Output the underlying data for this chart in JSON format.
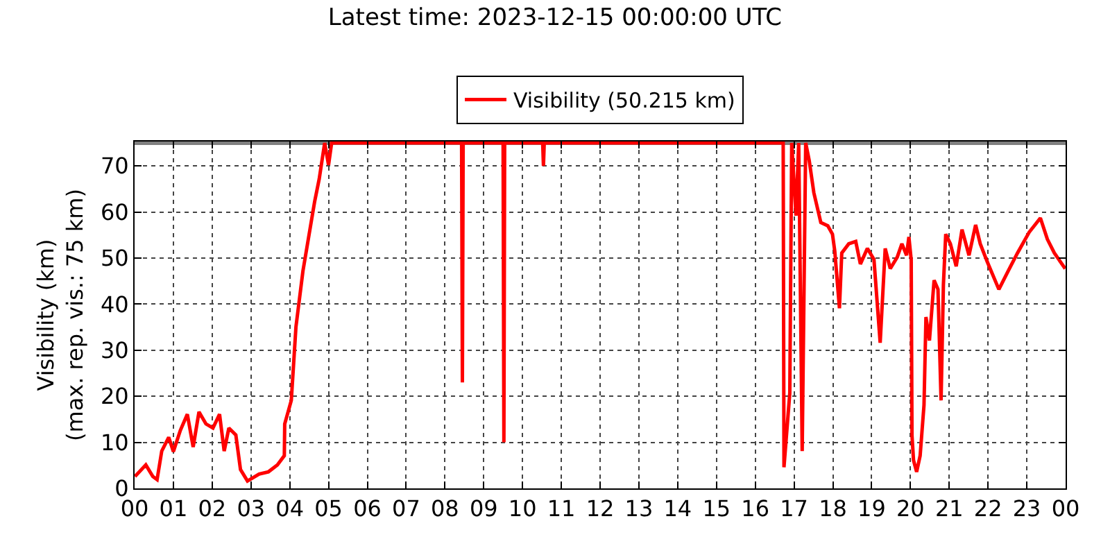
{
  "chart_data": {
    "type": "line",
    "title": "Latest time: 2023-12-15 00:00:00 UTC",
    "ylabel": "Visibility (km)\n(max. rep. vis.: 75 km)",
    "series": [
      {
        "name": "Visibility (50.215 km)",
        "color": "#ff0000",
        "x": [
          0.01,
          0.29,
          0.47,
          0.58,
          0.7,
          0.88,
          1.0,
          1.18,
          1.36,
          1.51,
          1.66,
          1.84,
          2.02,
          2.19,
          2.31,
          2.43,
          2.61,
          2.73,
          2.91,
          3.21,
          3.45,
          3.68,
          3.86,
          3.87,
          4.04,
          4.16,
          4.34,
          4.52,
          4.64,
          4.76,
          4.9,
          5.0,
          5.08,
          6.0,
          7.0,
          8.0,
          8.43,
          8.45,
          8.47,
          9.0,
          9.5,
          9.52,
          9.54,
          10.0,
          10.52,
          10.54,
          10.56,
          12.0,
          14.0,
          16.0,
          16.72,
          16.74,
          16.89,
          16.94,
          17.05,
          17.12,
          17.21,
          17.3,
          17.39,
          17.51,
          17.69,
          17.87,
          17.99,
          18.05,
          18.17,
          18.23,
          18.41,
          18.59,
          18.71,
          18.89,
          19.06,
          19.22,
          19.35,
          19.48,
          19.66,
          19.78,
          19.9,
          19.96,
          20.02,
          20.04,
          20.08,
          20.16,
          20.25,
          20.35,
          20.4,
          20.49,
          20.61,
          20.71,
          20.79,
          20.85,
          20.91,
          21.03,
          21.18,
          21.33,
          21.51,
          21.68,
          21.8,
          21.98,
          22.28,
          22.52,
          22.76,
          23.06,
          23.35,
          23.53,
          23.71,
          23.99
        ],
        "values": [
          2.6,
          5.1,
          2.6,
          1.9,
          8.1,
          11.1,
          8,
          12.6,
          16.1,
          9,
          16.6,
          14,
          13.1,
          16.1,
          8.1,
          13.1,
          11.6,
          4.1,
          1.6,
          3.1,
          3.6,
          5.1,
          7.1,
          14,
          19.1,
          35.1,
          47.2,
          56.2,
          62.2,
          67.2,
          75,
          70.2,
          75,
          75,
          75,
          75,
          75,
          23,
          75,
          75,
          75,
          10,
          75,
          75,
          75,
          70,
          75,
          75,
          75,
          75,
          75,
          4.6,
          20.7,
          75,
          59.2,
          75,
          8.1,
          75,
          71.2,
          64.2,
          57.7,
          57,
          55.2,
          51.5,
          39.1,
          51.1,
          53.1,
          53.6,
          48.7,
          52.1,
          49.7,
          31.6,
          52.1,
          47.7,
          50.2,
          53.1,
          50.6,
          54.6,
          49.6,
          11.5,
          6.1,
          3.6,
          7.1,
          18.1,
          37.2,
          32.1,
          45.2,
          43.2,
          19.1,
          44.2,
          55.2,
          53.1,
          48.2,
          56.2,
          50.6,
          57.2,
          53.1,
          49.2,
          43.2,
          47.2,
          51.1,
          55.6,
          58.7,
          54.1,
          51.1,
          47.7
        ]
      }
    ],
    "xlim": [
      0,
      24
    ],
    "xticks": [
      {
        "value": 0,
        "label": "00"
      },
      {
        "value": 1,
        "label": "01"
      },
      {
        "value": 2,
        "label": "02"
      },
      {
        "value": 3,
        "label": "03"
      },
      {
        "value": 4,
        "label": "04"
      },
      {
        "value": 5,
        "label": "05"
      },
      {
        "value": 6,
        "label": "06"
      },
      {
        "value": 7,
        "label": "07"
      },
      {
        "value": 8,
        "label": "08"
      },
      {
        "value": 9,
        "label": "09"
      },
      {
        "value": 10,
        "label": "10"
      },
      {
        "value": 11,
        "label": "11"
      },
      {
        "value": 12,
        "label": "12"
      },
      {
        "value": 13,
        "label": "13"
      },
      {
        "value": 14,
        "label": "14"
      },
      {
        "value": 15,
        "label": "15"
      },
      {
        "value": 16,
        "label": "16"
      },
      {
        "value": 17,
        "label": "17"
      },
      {
        "value": 18,
        "label": "18"
      },
      {
        "value": 19,
        "label": "19"
      },
      {
        "value": 20,
        "label": "20"
      },
      {
        "value": 21,
        "label": "21"
      },
      {
        "value": 22,
        "label": "22"
      },
      {
        "value": 23,
        "label": "23"
      },
      {
        "value": 24,
        "label": "00"
      }
    ],
    "ylim": [
      0,
      75.3
    ],
    "yticks": [
      0,
      10,
      20,
      30,
      40,
      50,
      60,
      70
    ],
    "ref_lines": [
      {
        "axis": "y",
        "value": 75,
        "color": "#808080"
      }
    ],
    "grid": true,
    "legend": "top",
    "line_style": "solid",
    "marker": "none"
  }
}
